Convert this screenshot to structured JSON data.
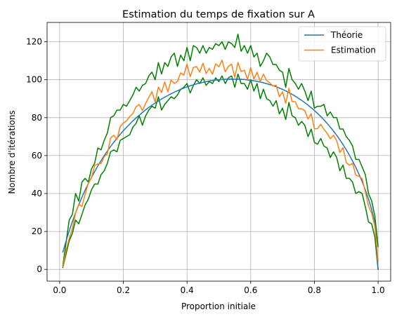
{
  "chart_data": {
    "type": "line",
    "title": "Estimation du temps de fixation sur A",
    "xlabel": "Proportion initiale",
    "ylabel": "Nombre d'itérations",
    "xlim": [
      -0.0395,
      1.0395
    ],
    "ylim": [
      -6.2,
      130.2
    ],
    "xticks": [
      0.0,
      0.2,
      0.4,
      0.6,
      0.8,
      1.0
    ],
    "xtick_labels": [
      "0.0",
      "0.2",
      "0.4",
      "0.6",
      "0.8",
      "1.0"
    ],
    "yticks": [
      0,
      20,
      40,
      60,
      80,
      100,
      120
    ],
    "ytick_labels": [
      "0",
      "20",
      "40",
      "60",
      "80",
      "100",
      "120"
    ],
    "grid": true,
    "legend_position": "top-right",
    "x": [
      0.01,
      0.02,
      0.03,
      0.04,
      0.05,
      0.06,
      0.07,
      0.08,
      0.09,
      0.1,
      0.11,
      0.12,
      0.13,
      0.14,
      0.15,
      0.16,
      0.17,
      0.18,
      0.19,
      0.2,
      0.21,
      0.22,
      0.23,
      0.24,
      0.25,
      0.26,
      0.27,
      0.28,
      0.29,
      0.3,
      0.31,
      0.32,
      0.33,
      0.34,
      0.35,
      0.36,
      0.37,
      0.38,
      0.39,
      0.4,
      0.41,
      0.42,
      0.43,
      0.44,
      0.45,
      0.46,
      0.47,
      0.48,
      0.49,
      0.5,
      0.51,
      0.52,
      0.53,
      0.54,
      0.55,
      0.56,
      0.57,
      0.58,
      0.59,
      0.6,
      0.61,
      0.62,
      0.63,
      0.64,
      0.65,
      0.66,
      0.67,
      0.68,
      0.69,
      0.7,
      0.71,
      0.72,
      0.73,
      0.74,
      0.75,
      0.76,
      0.77,
      0.78,
      0.79,
      0.8,
      0.81,
      0.82,
      0.83,
      0.84,
      0.85,
      0.86,
      0.87,
      0.88,
      0.89,
      0.9,
      0.91,
      0.92,
      0.93,
      0.94,
      0.95,
      0.96,
      0.97,
      0.98,
      0.99,
      1.0
    ],
    "series": [
      {
        "name": "Théorie",
        "color": "#1f77b4",
        "values": [
          9.1,
          14.9,
          20.3,
          25.2,
          29.8,
          34.0,
          38.0,
          41.8,
          45.2,
          48.5,
          51.6,
          54.6,
          57.3,
          60.0,
          62.4,
          64.8,
          67.0,
          69.1,
          71.2,
          73.1,
          74.9,
          76.6,
          78.3,
          79.8,
          81.3,
          82.7,
          84.1,
          85.4,
          86.6,
          87.7,
          88.8,
          89.8,
          90.8,
          91.7,
          92.6,
          93.4,
          94.2,
          94.9,
          95.6,
          96.2,
          96.8,
          97.3,
          97.8,
          98.2,
          98.6,
          99.0,
          99.3,
          99.6,
          99.8,
          100.0,
          100.1,
          100.2,
          100.3,
          100.3,
          100.3,
          100.3,
          100.2,
          100.1,
          99.9,
          99.7,
          99.4,
          99.1,
          98.8,
          98.4,
          97.9,
          97.4,
          96.9,
          96.3,
          95.6,
          94.9,
          94.1,
          93.2,
          92.3,
          91.3,
          90.2,
          89.1,
          87.9,
          86.6,
          85.2,
          83.8,
          82.2,
          80.6,
          78.8,
          77.0,
          75.0,
          72.9,
          70.7,
          68.3,
          65.8,
          63.1,
          60.2,
          57.1,
          53.8,
          50.2,
          46.3,
          42.0,
          37.1,
          31.5,
          24.6,
          0.0
        ]
      },
      {
        "name": "Estimation",
        "color": "#ff7f0e",
        "values": [
          1.5,
          9.9,
          16.4,
          21.6,
          29.7,
          34.3,
          33.2,
          39.5,
          45.5,
          48.2,
          54.7,
          55.6,
          55.8,
          59.4,
          61.0,
          69.2,
          70.7,
          68.5,
          75.3,
          77.1,
          78.3,
          80.6,
          82.1,
          85.8,
          86.9,
          83.8,
          87.5,
          90.6,
          93.7,
          88.2,
          96.1,
          93.3,
          98.8,
          93.6,
          99.8,
          98.0,
          99.1,
          103.6,
          102.4,
          108.3,
          101.6,
          106.4,
          106.9,
          104.0,
          108.7,
          103.3,
          106.0,
          102.9,
          108.4,
          106.8,
          110.3,
          104.2,
          107.0,
          108.2,
          101.2,
          109.1,
          104.3,
          105.0,
          100.2,
          106.4,
          100.4,
          103.9,
          99.1,
          102.9,
          99.6,
          98.3,
          96.7,
          97.1,
          91.0,
          93.6,
          87.6,
          95.5,
          88.5,
          88.4,
          84.7,
          84.7,
          83.7,
          79.3,
          82.1,
          74.1,
          74.2,
          76.5,
          73.8,
          71.8,
          68.9,
          70.7,
          67.9,
          61.6,
          64.2,
          56.4,
          54.9,
          55.9,
          49.7,
          49.1,
          47.8,
          41.0,
          33.4,
          29.5,
          22.7,
          4.5
        ]
      },
      {
        "name": "upper",
        "color": "#008000",
        "values": [
          2.0,
          14.0,
          26.0,
          29.0,
          40.0,
          36.0,
          46.0,
          48.0,
          46.0,
          53.0,
          56.0,
          64.0,
          63.0,
          68.0,
          72.0,
          80.0,
          81.0,
          84.0,
          84.0,
          87.0,
          86.0,
          89.0,
          92.0,
          96.0,
          94.0,
          97.0,
          98.0,
          102.0,
          104.0,
          100.0,
          109.0,
          103.0,
          109.0,
          107.0,
          112.0,
          114.0,
          107.0,
          113.0,
          110.0,
          117.0,
          110.0,
          118.0,
          117.0,
          114.0,
          118.0,
          114.0,
          117.0,
          116.0,
          119.0,
          118.0,
          120.0,
          116.0,
          120.0,
          119.0,
          117.0,
          124.0,
          115.0,
          118.0,
          114.0,
          118.0,
          112.0,
          114.0,
          107.0,
          110.0,
          114.0,
          112.0,
          108.0,
          108.0,
          105.0,
          104.0,
          96.0,
          106.0,
          100.0,
          98.0,
          95.0,
          98.0,
          94.0,
          89.0,
          94.0,
          85.0,
          86.0,
          86.0,
          87.0,
          81.0,
          83.0,
          80.0,
          80.0,
          74.0,
          74.0,
          70.0,
          68.0,
          65.0,
          58.0,
          58.0,
          54.0,
          50.0,
          40.0,
          36.0,
          28.0,
          12.0
        ]
      },
      {
        "name": "lower",
        "color": "#008000",
        "values": [
          1.0,
          8.0,
          15.0,
          19.0,
          26.0,
          24.0,
          29.0,
          34.0,
          37.0,
          42.0,
          45.0,
          45.0,
          50.0,
          52.0,
          56.0,
          62.0,
          63.0,
          62.0,
          68.0,
          69.0,
          70.0,
          71.0,
          75.0,
          77.0,
          81.0,
          76.0,
          81.0,
          84.0,
          86.0,
          85.0,
          91.0,
          84.0,
          87.0,
          89.0,
          91.0,
          90.0,
          92.0,
          95.0,
          96.0,
          98.0,
          93.0,
          97.0,
          100.0,
          98.0,
          101.0,
          97.0,
          99.0,
          98.0,
          101.0,
          99.0,
          102.0,
          98.0,
          101.0,
          102.0,
          96.0,
          103.0,
          98.0,
          98.0,
          95.0,
          100.0,
          94.0,
          98.0,
          90.0,
          95.0,
          90.0,
          89.0,
          86.0,
          89.0,
          82.0,
          85.0,
          79.0,
          88.0,
          81.0,
          80.0,
          76.0,
          78.0,
          76.0,
          70.0,
          74.0,
          67.0,
          66.0,
          69.0,
          65.0,
          64.0,
          59.0,
          62.0,
          59.0,
          52.0,
          55.0,
          48.0,
          48.0,
          46.0,
          40.0,
          41.0,
          40.0,
          33.0,
          25.0,
          24.0,
          17.0,
          0.0
        ]
      }
    ],
    "legend": [
      "Théorie",
      "Estimation"
    ]
  }
}
